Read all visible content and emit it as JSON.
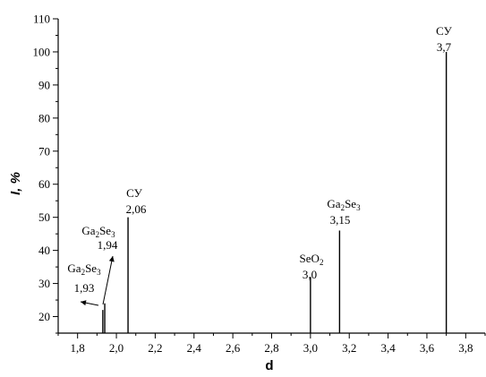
{
  "chart_data": {
    "type": "bar",
    "xlabel": "d",
    "ylabel": "I, %",
    "xlim": [
      1.7,
      3.9
    ],
    "ylim": [
      15,
      110
    ],
    "x_ticks": [
      "1,8",
      "2,0",
      "2,2",
      "2,4",
      "2,6",
      "2,8",
      "3,0",
      "3,2",
      "3,4",
      "3,6",
      "3,8"
    ],
    "y_ticks": [
      "20",
      "30",
      "40",
      "50",
      "60",
      "70",
      "80",
      "90",
      "100",
      "110"
    ],
    "grid": false,
    "peaks": [
      {
        "x": 1.93,
        "y": 22,
        "label_parts": [
          "Ga",
          "2",
          "Se",
          "3"
        ],
        "value_label": "1,93"
      },
      {
        "x": 1.94,
        "y": 24,
        "label_parts": [
          "Ga",
          "2",
          "Se",
          "3"
        ],
        "value_label": "1,94"
      },
      {
        "x": 2.06,
        "y": 50,
        "label_parts": [
          "СУ"
        ],
        "value_label": "2,06"
      },
      {
        "x": 3.0,
        "y": 32,
        "label_parts": [
          "SeO",
          "2"
        ],
        "value_label": "3,0"
      },
      {
        "x": 3.15,
        "y": 46,
        "label_parts": [
          "Ga",
          "2",
          "Se",
          "3"
        ],
        "value_label": "3,15"
      },
      {
        "x": 3.7,
        "y": 100,
        "label_parts": [
          "СУ"
        ],
        "value_label": "3,7"
      }
    ]
  }
}
